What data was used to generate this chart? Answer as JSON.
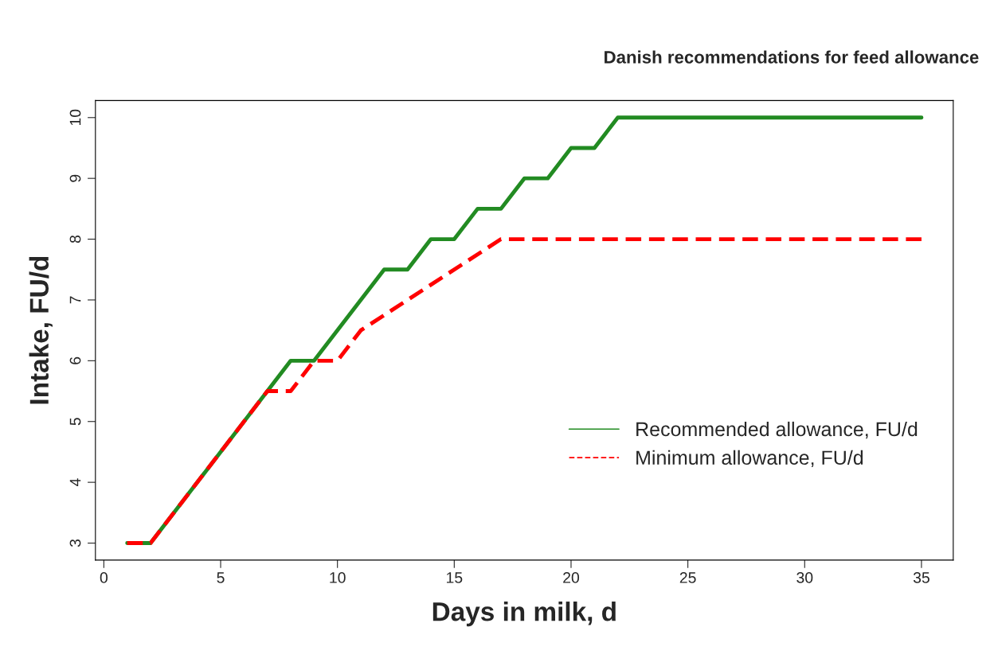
{
  "chart_data": {
    "type": "line",
    "title": "Danish recommendations for feed allowance",
    "xlabel": "Days in milk, d",
    "ylabel": "Intake, FU/d",
    "xlim": [
      -0.36,
      36.36
    ],
    "xticks": [
      0,
      5,
      10,
      15,
      20,
      25,
      30,
      35
    ],
    "ylim": [
      2.72,
      10.28
    ],
    "yticks": [
      3,
      4,
      5,
      6,
      7,
      8,
      9,
      10
    ],
    "grid": false,
    "legend": "bottom right",
    "marker": "none",
    "series": [
      {
        "name": "Recommended allowance, FU/d",
        "color": "#228b22",
        "line_style": "solid",
        "x": [
          1,
          2,
          8,
          9,
          12,
          13,
          14,
          15,
          16,
          17,
          18,
          19,
          20,
          21,
          22,
          35
        ],
        "values": [
          3,
          3,
          6,
          6,
          7.5,
          7.5,
          8,
          8,
          8.5,
          8.5,
          9,
          9,
          9.5,
          9.5,
          10,
          10
        ]
      },
      {
        "name": "Minimum allowance, FU/d",
        "color": "#ff0000",
        "line_style": "dashed",
        "x": [
          1,
          2,
          7,
          8,
          9,
          10,
          11,
          17,
          35
        ],
        "values": [
          3,
          3,
          5.5,
          5.5,
          6,
          6,
          6.5,
          8,
          8
        ]
      }
    ]
  }
}
